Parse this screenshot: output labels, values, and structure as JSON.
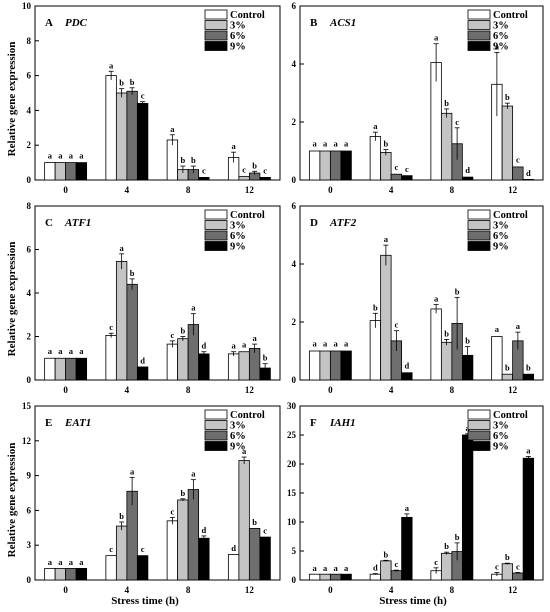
{
  "figure": {
    "ylabel": "Relative gene expression",
    "xlabel": "Stress time (h)"
  },
  "legend": {
    "labels": [
      "Control",
      "3%",
      "6%",
      "9%"
    ],
    "colors": [
      "#ffffff",
      "#c4c4c4",
      "#6e6e6e",
      "#000000"
    ]
  },
  "chart_data": [
    {
      "panel": "A",
      "gene": "PDC",
      "type": "bar",
      "categories": [
        "0",
        "4",
        "8",
        "12"
      ],
      "ylim": [
        0,
        10
      ],
      "yticks": [
        0,
        2,
        4,
        6,
        8,
        10
      ],
      "series": [
        {
          "name": "Control",
          "values": [
            1.0,
            6.0,
            2.3,
            1.3
          ],
          "errors": [
            0.05,
            0.25,
            0.3,
            0.3
          ],
          "letters": [
            "a",
            "a",
            "a",
            "a"
          ]
        },
        {
          "name": "3%",
          "values": [
            1.0,
            5.0,
            0.6,
            0.2
          ],
          "errors": [
            0.05,
            0.25,
            0.2,
            0.05
          ],
          "letters": [
            "a",
            "b",
            "b",
            "c"
          ]
        },
        {
          "name": "6%",
          "values": [
            1.0,
            5.1,
            0.6,
            0.4
          ],
          "errors": [
            0.05,
            0.2,
            0.2,
            0.1
          ],
          "letters": [
            "a",
            "b",
            "b",
            "b"
          ]
        },
        {
          "name": "9%",
          "values": [
            1.0,
            4.4,
            0.15,
            0.15
          ],
          "errors": [
            0.05,
            0.1,
            0.05,
            0.05
          ],
          "letters": [
            "a",
            "c",
            "c",
            "c"
          ]
        }
      ]
    },
    {
      "panel": "B",
      "gene": "ACS1",
      "type": "bar",
      "categories": [
        "0",
        "4",
        "8",
        "12"
      ],
      "ylim": [
        0,
        6
      ],
      "yticks": [
        0,
        2,
        4,
        6
      ],
      "series": [
        {
          "name": "Control",
          "values": [
            1.0,
            1.5,
            4.05,
            3.3
          ],
          "errors": [
            0.05,
            0.15,
            0.65,
            1.1
          ],
          "letters": [
            "a",
            "a",
            "a",
            "a"
          ]
        },
        {
          "name": "3%",
          "values": [
            1.0,
            0.95,
            2.3,
            2.55
          ],
          "errors": [
            0.05,
            0.1,
            0.15,
            0.1
          ],
          "letters": [
            "a",
            "b",
            "b",
            "b"
          ]
        },
        {
          "name": "6%",
          "values": [
            1.0,
            0.2,
            1.25,
            0.45
          ],
          "errors": [
            0.05,
            0.04,
            0.55,
            0.05
          ],
          "letters": [
            "a",
            "c",
            "c",
            "c"
          ]
        },
        {
          "name": "9%",
          "values": [
            1.0,
            0.15,
            0.1,
            0.02
          ],
          "errors": [
            0.05,
            0.03,
            0.03,
            0.01
          ],
          "letters": [
            "a",
            "c",
            "d",
            "d"
          ]
        }
      ]
    },
    {
      "panel": "C",
      "gene": "ATF1",
      "type": "bar",
      "categories": [
        "0",
        "4",
        "8",
        "12"
      ],
      "ylim": [
        0,
        8
      ],
      "yticks": [
        0,
        2,
        4,
        6,
        8
      ],
      "series": [
        {
          "name": "Control",
          "values": [
            1.0,
            2.05,
            1.65,
            1.2
          ],
          "errors": [
            0.05,
            0.1,
            0.15,
            0.1
          ],
          "letters": [
            "a",
            "c",
            "c",
            "a"
          ]
        },
        {
          "name": "3%",
          "values": [
            1.0,
            5.45,
            1.9,
            1.3
          ],
          "errors": [
            0.05,
            0.35,
            0.1,
            0.05
          ],
          "letters": [
            "a",
            "a",
            "b",
            "a"
          ]
        },
        {
          "name": "6%",
          "values": [
            1.0,
            4.4,
            2.55,
            1.45
          ],
          "errors": [
            0.05,
            0.25,
            0.5,
            0.2
          ],
          "letters": [
            "a",
            "b",
            "a",
            "a"
          ]
        },
        {
          "name": "9%",
          "values": [
            1.0,
            0.6,
            1.2,
            0.55
          ],
          "errors": [
            0.05,
            0.03,
            0.1,
            0.2
          ],
          "letters": [
            "a",
            "d",
            "d",
            "b"
          ]
        }
      ]
    },
    {
      "panel": "D",
      "gene": "ATF2",
      "type": "bar",
      "categories": [
        "0",
        "4",
        "8",
        "12"
      ],
      "ylim": [
        0,
        6
      ],
      "yticks": [
        0,
        2,
        4,
        6
      ],
      "series": [
        {
          "name": "Control",
          "values": [
            1.0,
            2.05,
            2.45,
            1.5
          ],
          "errors": [
            0.05,
            0.25,
            0.15,
            0.05
          ],
          "letters": [
            "a",
            "b",
            "a",
            "a"
          ]
        },
        {
          "name": "3%",
          "values": [
            1.0,
            4.3,
            1.3,
            0.2
          ],
          "errors": [
            0.05,
            0.35,
            0.1,
            0.03
          ],
          "letters": [
            "a",
            "a",
            "b",
            "b"
          ]
        },
        {
          "name": "6%",
          "values": [
            1.0,
            1.35,
            1.95,
            1.35
          ],
          "errors": [
            0.05,
            0.35,
            0.9,
            0.3
          ],
          "letters": [
            "a",
            "c",
            "b",
            "a"
          ]
        },
        {
          "name": "9%",
          "values": [
            1.0,
            0.25,
            0.85,
            0.2
          ],
          "errors": [
            0.05,
            0.05,
            0.3,
            0.03
          ],
          "letters": [
            "a",
            "d",
            "b",
            "b"
          ]
        }
      ]
    },
    {
      "panel": "E",
      "gene": "EAT1",
      "type": "bar",
      "categories": [
        "0",
        "4",
        "8",
        "12"
      ],
      "ylim": [
        0,
        15
      ],
      "yticks": [
        0,
        3,
        6,
        9,
        12,
        15
      ],
      "series": [
        {
          "name": "Control",
          "values": [
            1.0,
            2.1,
            5.1,
            2.2
          ],
          "errors": [
            0.05,
            0.05,
            0.3,
            0.05
          ],
          "letters": [
            "a",
            "c",
            "c",
            "d"
          ]
        },
        {
          "name": "3%",
          "values": [
            1.0,
            4.65,
            6.9,
            10.3
          ],
          "errors": [
            0.05,
            0.35,
            0.1,
            0.3
          ],
          "letters": [
            "a",
            "b",
            "b",
            "a"
          ]
        },
        {
          "name": "6%",
          "values": [
            1.0,
            7.65,
            7.8,
            4.45
          ],
          "errors": [
            0.05,
            1.2,
            0.85,
            0.05
          ],
          "letters": [
            "a",
            "a",
            "a",
            "b"
          ]
        },
        {
          "name": "9%",
          "values": [
            1.0,
            2.1,
            3.6,
            3.7
          ],
          "errors": [
            0.05,
            0.05,
            0.2,
            0.05
          ],
          "letters": [
            "a",
            "c",
            "d",
            "c"
          ]
        }
      ]
    },
    {
      "panel": "F",
      "gene": "IAH1",
      "type": "bar",
      "categories": [
        "0",
        "4",
        "8",
        "12"
      ],
      "ylim": [
        0,
        30
      ],
      "yticks": [
        0,
        5,
        10,
        15,
        20,
        25,
        30
      ],
      "series": [
        {
          "name": "Control",
          "values": [
            1.0,
            1.0,
            1.6,
            1.0
          ],
          "errors": [
            0.05,
            0.1,
            0.5,
            0.3
          ],
          "letters": [
            "a",
            "d",
            "c",
            "c"
          ]
        },
        {
          "name": "3%",
          "values": [
            1.0,
            3.3,
            4.6,
            2.8
          ],
          "errors": [
            0.05,
            0.1,
            0.2,
            0.1
          ],
          "letters": [
            "a",
            "b",
            "b",
            "b"
          ]
        },
        {
          "name": "6%",
          "values": [
            1.0,
            1.6,
            4.9,
            1.2
          ],
          "errors": [
            0.05,
            0.1,
            1.5,
            0.1
          ],
          "letters": [
            "a",
            "c",
            "b",
            "c"
          ]
        },
        {
          "name": "9%",
          "values": [
            1.0,
            10.8,
            25.0,
            21.0
          ],
          "errors": [
            0.05,
            0.6,
            0.2,
            0.3
          ],
          "letters": [
            "a",
            "a",
            "a",
            "a"
          ]
        }
      ]
    }
  ]
}
